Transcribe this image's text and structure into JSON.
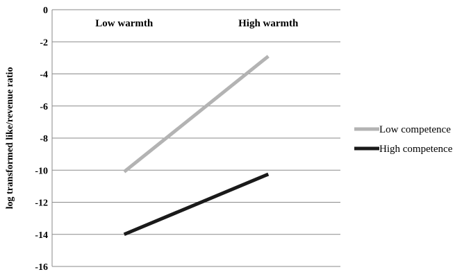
{
  "chart_data": {
    "type": "line",
    "categories": [
      "Low warmth",
      "High warmth"
    ],
    "series": [
      {
        "name": "Low competence",
        "values": [
          -10.1,
          -2.9
        ],
        "color": "#b3b3b3"
      },
      {
        "name": "High competence",
        "values": [
          -14.0,
          -10.25
        ],
        "color": "#1a1a1a"
      }
    ],
    "ylabel": "log transformed like/revenue ratio",
    "ylim": [
      -16,
      0
    ],
    "yticks": [
      0,
      -2,
      -4,
      -6,
      -8,
      -10,
      -12,
      -14,
      -16
    ],
    "ytick_labels": [
      "0",
      "-2",
      "-4",
      "-6",
      "-8",
      "-10",
      "-12",
      "-14",
      "-16"
    ],
    "grid": true,
    "legend_position": "right",
    "category_label_position": "top"
  }
}
